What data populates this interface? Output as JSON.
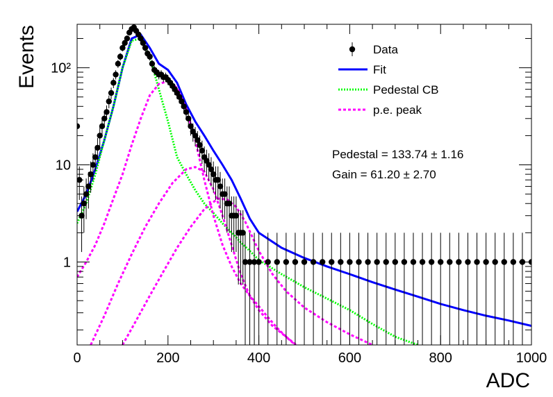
{
  "chart_data": {
    "type": "scatter",
    "title": "",
    "xlabel": "ADC",
    "ylabel": "Events",
    "xlim": [
      0,
      1000
    ],
    "ylim": [
      0.14,
      280
    ],
    "y_scale": "log",
    "x_ticks": [
      0,
      200,
      400,
      600,
      800,
      1000
    ],
    "x_tick_labels": [
      "0",
      "200",
      "400",
      "600",
      "800",
      "1000"
    ],
    "y_ticks": [
      1,
      10,
      100
    ],
    "y_tick_labels": [
      "1",
      "10",
      "10²"
    ],
    "legend_position": "top-right",
    "legend": [
      {
        "label": "Data",
        "style": "marker"
      },
      {
        "label": "Fit",
        "style": "solid",
        "color": "#0000ff"
      },
      {
        "label": "Pedestal CB",
        "style": "dotted",
        "color": "#00ff00"
      },
      {
        "label": "p.e. peak",
        "style": "dashed",
        "color": "#ff00ff"
      }
    ],
    "annotations": [
      "Pedestal = 133.74 ± 1.16",
      "Gain = 61.20 ± 2.70"
    ],
    "pedestal": 133.74,
    "pedestal_err": 1.16,
    "gain": 61.2,
    "gain_err": 2.7,
    "colors": {
      "data": "#000000",
      "fit": "#0000ff",
      "pedestal": "#00ff00",
      "pe_peak": "#ff00ff"
    },
    "series": [
      {
        "name": "Data",
        "kind": "points",
        "x": [
          0,
          5,
          10,
          15,
          20,
          25,
          30,
          35,
          40,
          45,
          50,
          55,
          60,
          65,
          70,
          75,
          80,
          85,
          90,
          95,
          100,
          105,
          110,
          115,
          120,
          125,
          130,
          135,
          140,
          145,
          150,
          155,
          160,
          165,
          170,
          175,
          180,
          185,
          190,
          195,
          200,
          205,
          210,
          215,
          220,
          225,
          230,
          235,
          240,
          245,
          250,
          255,
          260,
          265,
          270,
          275,
          280,
          285,
          290,
          295,
          300,
          305,
          310,
          315,
          320,
          325,
          330,
          335,
          340,
          345,
          350,
          355,
          360,
          365,
          370,
          380,
          390,
          400,
          420,
          440,
          460,
          480,
          500,
          520,
          540,
          560,
          580,
          600,
          620,
          640,
          660,
          680,
          700,
          720,
          740,
          760,
          780,
          800,
          820,
          840,
          860,
          880,
          900,
          920,
          940,
          960,
          980,
          1000
        ],
        "y": [
          25,
          7,
          3,
          4,
          5,
          6,
          8,
          10,
          12,
          15,
          20,
          25,
          30,
          35,
          45,
          55,
          70,
          85,
          110,
          130,
          160,
          180,
          200,
          230,
          250,
          260,
          240,
          220,
          200,
          180,
          160,
          140,
          130,
          110,
          95,
          90,
          85,
          85,
          80,
          80,
          75,
          70,
          65,
          60,
          55,
          50,
          45,
          40,
          35,
          30,
          25,
          22,
          20,
          18,
          16,
          14,
          12,
          11,
          10,
          9,
          8,
          7,
          7,
          6,
          5,
          5,
          4,
          4,
          3,
          3,
          3,
          2,
          2,
          2,
          1,
          1,
          1,
          1,
          1,
          1,
          1,
          1,
          1,
          1,
          1,
          1,
          1,
          1,
          1,
          1,
          1,
          1,
          1,
          1,
          1,
          1,
          1,
          1,
          1,
          1,
          1,
          1,
          1,
          1,
          1,
          1,
          1,
          1
        ]
      },
      {
        "name": "Fit",
        "kind": "line",
        "x": [
          0,
          20,
          40,
          60,
          80,
          100,
          120,
          140,
          160,
          180,
          200,
          220,
          240,
          260,
          280,
          300,
          320,
          340,
          360,
          380,
          400,
          450,
          500,
          550,
          600,
          650,
          700,
          750,
          800,
          850,
          900,
          950,
          1000
        ],
        "y": [
          3.3,
          5,
          9,
          18,
          40,
          100,
          200,
          220,
          160,
          110,
          95,
          70,
          42,
          28,
          20,
          14,
          10,
          7,
          4.5,
          2.8,
          2,
          1.4,
          1.1,
          0.9,
          0.75,
          0.62,
          0.52,
          0.44,
          0.37,
          0.32,
          0.28,
          0.25,
          0.22
        ]
      },
      {
        "name": "Pedestal CB",
        "kind": "line",
        "x": [
          0,
          20,
          40,
          60,
          80,
          100,
          120,
          140,
          160,
          180,
          200,
          220,
          240,
          260,
          280,
          300,
          320,
          340,
          360,
          380,
          400,
          450,
          500,
          550,
          600,
          650,
          700,
          750
        ],
        "y": [
          2.5,
          4,
          8,
          18,
          40,
          100,
          190,
          200,
          130,
          60,
          28,
          12,
          8,
          5.5,
          4,
          3.2,
          2.5,
          2,
          1.6,
          1.3,
          1.05,
          0.75,
          0.55,
          0.42,
          0.32,
          0.23,
          0.17,
          0.14
        ]
      },
      {
        "name": "p.e. peak 1",
        "kind": "line",
        "x": [
          0,
          20,
          40,
          60,
          80,
          100,
          120,
          140,
          160,
          180,
          200,
          220,
          240,
          260,
          280,
          300,
          320,
          340,
          360,
          380,
          400,
          420,
          440,
          460,
          480,
          500
        ],
        "y": [
          0.7,
          1,
          1.5,
          2.5,
          4.5,
          8,
          16,
          30,
          52,
          68,
          73,
          62,
          38,
          18,
          7,
          3,
          1.5,
          0.9,
          0.6,
          0.45,
          0.35,
          0.27,
          0.21,
          0.17,
          0.14,
          0.12
        ]
      },
      {
        "name": "p.e. peak 2",
        "kind": "line",
        "x": [
          30,
          60,
          90,
          120,
          150,
          180,
          210,
          240,
          260,
          280,
          300,
          320,
          340,
          360,
          380,
          400,
          430,
          460,
          500
        ],
        "y": [
          0.14,
          0.28,
          0.6,
          1.2,
          2.3,
          4,
          6.5,
          9,
          9.5,
          8.5,
          5.6,
          3,
          1.5,
          0.75,
          0.45,
          0.32,
          0.22,
          0.17,
          0.12
        ]
      },
      {
        "name": "p.e. peak 3",
        "kind": "line",
        "x": [
          100,
          130,
          160,
          190,
          220,
          250,
          280,
          310,
          330,
          350,
          370,
          400,
          430,
          460,
          500,
          550,
          600,
          650
        ],
        "y": [
          0.14,
          0.25,
          0.45,
          0.8,
          1.4,
          2.3,
          3.5,
          4.5,
          4.4,
          3.7,
          2.6,
          1.3,
          0.75,
          0.5,
          0.34,
          0.24,
          0.18,
          0.14
        ]
      }
    ]
  }
}
